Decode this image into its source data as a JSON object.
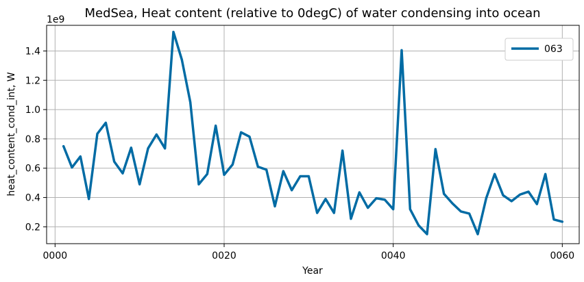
{
  "chart_data": {
    "type": "line",
    "title": "MedSea, Heat content (relative to 0degC) of water condensing into ocean",
    "xlabel": "Year",
    "ylabel": "heat_content_cond_int, W",
    "offset_label": "1e9",
    "xlim": [
      -1,
      62
    ],
    "ylim": [
      0.085,
      1.575
    ],
    "x_ticks": [
      0,
      20,
      40,
      60
    ],
    "x_tick_labels": [
      "0000",
      "0020",
      "0040",
      "0060"
    ],
    "y_ticks": [
      0.2,
      0.4,
      0.6,
      0.8,
      1.0,
      1.2,
      1.4
    ],
    "y_tick_labels": [
      "0.2",
      "0.4",
      "0.6",
      "0.8",
      "1.0",
      "1.2",
      "1.4"
    ],
    "grid": true,
    "legend_position": "top-right",
    "series": [
      {
        "name": "063",
        "color": "#006ba4",
        "x": [
          1,
          2,
          3,
          4,
          5,
          6,
          7,
          8,
          9,
          10,
          11,
          12,
          13,
          14,
          15,
          16,
          17,
          18,
          19,
          20,
          21,
          22,
          23,
          24,
          25,
          26,
          27,
          28,
          29,
          30,
          31,
          32,
          33,
          34,
          35,
          36,
          37,
          38,
          39,
          40,
          41,
          42,
          43,
          44,
          45,
          46,
          47,
          48,
          49,
          50,
          51,
          52,
          53,
          54,
          55,
          56,
          57,
          58,
          59,
          60
        ],
        "y": [
          0.75,
          0.605,
          0.68,
          0.39,
          0.835,
          0.91,
          0.645,
          0.565,
          0.74,
          0.49,
          0.735,
          0.83,
          0.735,
          1.53,
          1.34,
          1.05,
          0.49,
          0.56,
          0.89,
          0.555,
          0.625,
          0.845,
          0.815,
          0.61,
          0.59,
          0.34,
          0.58,
          0.45,
          0.545,
          0.545,
          0.295,
          0.39,
          0.295,
          0.72,
          0.255,
          0.435,
          0.33,
          0.395,
          0.385,
          0.32,
          1.405,
          0.32,
          0.21,
          0.15,
          0.73,
          0.425,
          0.36,
          0.305,
          0.29,
          0.15,
          0.395,
          0.56,
          0.415,
          0.375,
          0.42,
          0.44,
          0.355,
          0.56,
          0.25,
          0.235
        ]
      }
    ]
  }
}
